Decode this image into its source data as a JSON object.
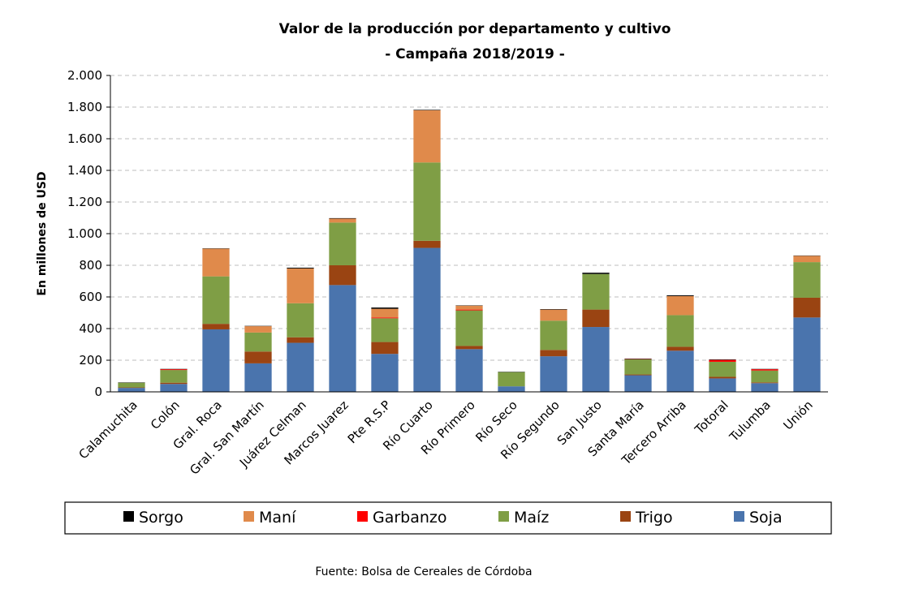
{
  "chart_data": {
    "type": "bar",
    "stacked": true,
    "title": "Valor de la producción por departamento y cultivo",
    "subtitle": "- Campaña 2018/2019 -",
    "ylabel": "En millones de USD",
    "xlabel": "",
    "ylim": [
      0,
      2000
    ],
    "yticks": [
      0,
      200,
      400,
      600,
      800,
      1000,
      1200,
      1400,
      1600,
      1800,
      2000
    ],
    "ytick_labels": [
      "0",
      "200",
      "400",
      "600",
      "800",
      "1.000",
      "1.200",
      "1.400",
      "1.600",
      "1.800",
      "2.000"
    ],
    "grid": "horizontal-dashed",
    "legend_position": "bottom",
    "categories": [
      "Calamuchita",
      "Colón",
      "Gral. Roca",
      "Gral. San Martín",
      "Juárez Celman",
      "Marcos Juarez",
      "Pte R.S.P",
      "Río Cuarto",
      "Río Primero",
      "Río Seco",
      "Río Segundo",
      "San Justo",
      "Santa María",
      "Tercero Arriba",
      "Totoral",
      "Tulumba",
      "Unión"
    ],
    "series": [
      {
        "name": "Soja",
        "color": "#4a74ad",
        "values": [
          25,
          50,
          395,
          180,
          310,
          675,
          240,
          910,
          270,
          35,
          225,
          410,
          105,
          260,
          85,
          55,
          470
        ]
      },
      {
        "name": "Trigo",
        "color": "#9a4412",
        "values": [
          3,
          8,
          35,
          75,
          35,
          125,
          75,
          45,
          20,
          0,
          40,
          110,
          5,
          25,
          10,
          5,
          125
        ]
      },
      {
        "name": "Maíz",
        "color": "#7f9e45",
        "values": [
          30,
          80,
          300,
          120,
          215,
          270,
          150,
          495,
          225,
          90,
          185,
          225,
          95,
          200,
          95,
          75,
          225
        ]
      },
      {
        "name": "Garbanzo",
        "color": "#ff0000",
        "values": [
          0,
          5,
          0,
          0,
          0,
          0,
          5,
          0,
          5,
          0,
          0,
          0,
          2,
          0,
          12,
          8,
          0
        ]
      },
      {
        "name": "Maní",
        "color": "#e08a4b",
        "values": [
          0,
          0,
          175,
          40,
          220,
          25,
          55,
          330,
          25,
          0,
          70,
          0,
          0,
          120,
          0,
          0,
          40
        ]
      },
      {
        "name": "Sorgo",
        "color": "#000000",
        "values": [
          2,
          2,
          2,
          2,
          5,
          3,
          8,
          3,
          2,
          2,
          3,
          8,
          3,
          5,
          3,
          2,
          2
        ]
      }
    ],
    "legend_order": [
      "Sorgo",
      "Maní",
      "Garbanzo",
      "Maíz",
      "Trigo",
      "Soja"
    ],
    "source": "Fuente: Bolsa de Cereales de Córdoba"
  }
}
